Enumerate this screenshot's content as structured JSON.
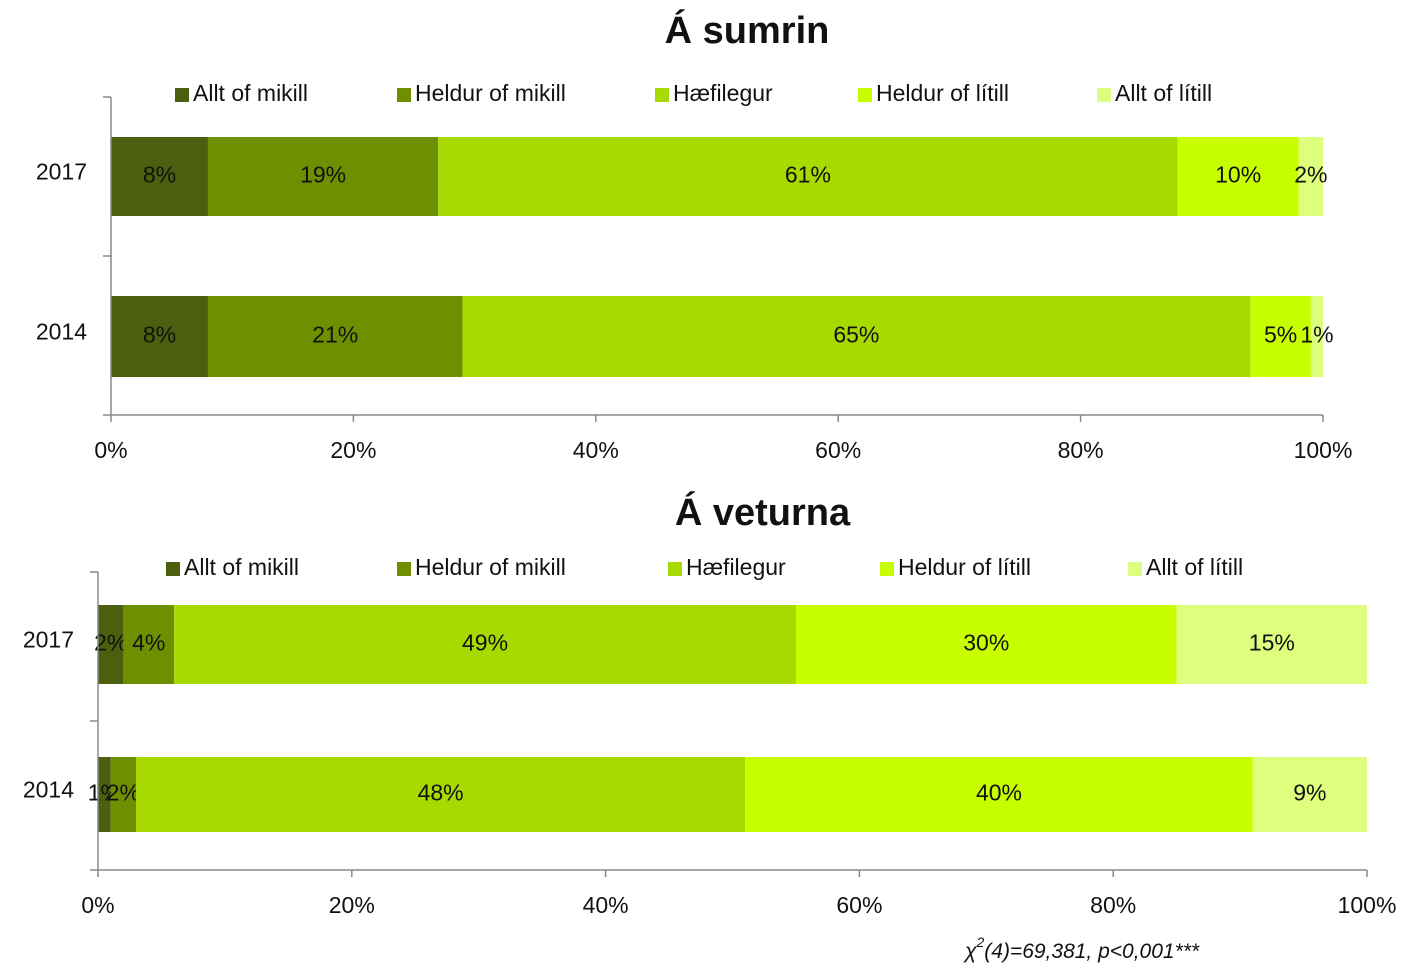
{
  "chart_data": [
    {
      "type": "stacked_bar_horizontal",
      "title": "Á sumrin",
      "categories": [
        "2017",
        "2014"
      ],
      "series": [
        {
          "name": "Allt of mikill",
          "color": "#4c5f0e",
          "label_color": "#ffffff",
          "values": [
            8,
            8
          ],
          "value_labels": [
            "8%",
            "8%"
          ]
        },
        {
          "name": "Heldur of mikill",
          "color": "#6e8f00",
          "label_color": "#ffffff",
          "values": [
            19,
            21
          ],
          "value_labels": [
            "19%",
            "21%"
          ]
        },
        {
          "name": "Hæfilegur",
          "color": "#a7da00",
          "label_color": "#111111",
          "values": [
            61,
            65
          ],
          "value_labels": [
            "61%",
            "65%"
          ]
        },
        {
          "name": "Heldur of lítill",
          "color": "#c8ff00",
          "label_color": "#111111",
          "values": [
            10,
            5
          ],
          "value_labels": [
            "10%",
            "5%"
          ]
        },
        {
          "name": "Allt of lítill",
          "color": "#ddff7d",
          "label_color": "#111111",
          "values": [
            2,
            1
          ],
          "value_labels": [
            "2%",
            "1%"
          ]
        }
      ],
      "xlim": [
        0,
        100
      ],
      "xticks": [
        {
          "value": 0,
          "label": "0%"
        },
        {
          "value": 20,
          "label": "20%"
        },
        {
          "value": 40,
          "label": "40%"
        },
        {
          "value": 60,
          "label": "60%"
        },
        {
          "value": 80,
          "label": "80%"
        },
        {
          "value": 100,
          "label": "100%"
        }
      ],
      "legend": "top"
    },
    {
      "type": "stacked_bar_horizontal",
      "title": "Á veturna",
      "categories": [
        "2017",
        "2014"
      ],
      "series": [
        {
          "name": "Allt of mikill",
          "color": "#4c5f0e",
          "label_color": "#ffffff",
          "values": [
            2,
            1
          ],
          "value_labels": [
            "2%",
            "1%"
          ]
        },
        {
          "name": "Heldur of mikill",
          "color": "#6e8f00",
          "label_color": "#ffffff",
          "values": [
            4,
            2
          ],
          "value_labels": [
            "4%",
            "2%"
          ]
        },
        {
          "name": "Hæfilegur",
          "color": "#a7da00",
          "label_color": "#111111",
          "values": [
            49,
            48
          ],
          "value_labels": [
            "49%",
            "48%"
          ]
        },
        {
          "name": "Heldur of lítill",
          "color": "#c8ff00",
          "label_color": "#111111",
          "values": [
            30,
            40
          ],
          "value_labels": [
            "30%",
            "40%"
          ]
        },
        {
          "name": "Allt of lítill",
          "color": "#ddff7d",
          "label_color": "#111111",
          "values": [
            15,
            9
          ],
          "value_labels": [
            "15%",
            "9%"
          ]
        }
      ],
      "xlim": [
        0,
        100
      ],
      "xticks": [
        {
          "value": 0,
          "label": "0%"
        },
        {
          "value": 20,
          "label": "20%"
        },
        {
          "value": 40,
          "label": "40%"
        },
        {
          "value": 60,
          "label": "60%"
        },
        {
          "value": 80,
          "label": "80%"
        },
        {
          "value": 100,
          "label": "100%"
        }
      ],
      "legend": "top",
      "annotation": {
        "symbol": "χ",
        "superscript": "2",
        "text": "(4)=69,381, p<0,001***"
      }
    }
  ]
}
